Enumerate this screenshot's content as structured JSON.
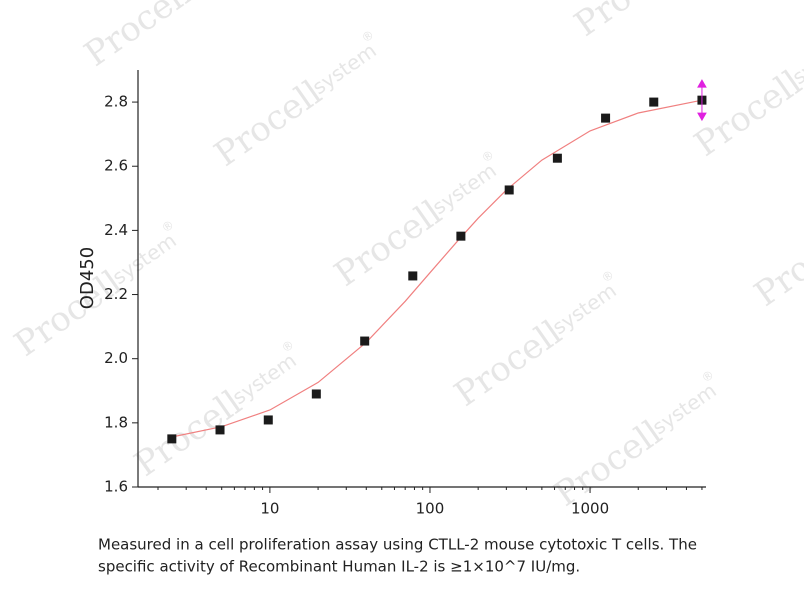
{
  "chart_data": {
    "type": "scatter",
    "y_label": "OD450",
    "x": [
      2.44,
      4.88,
      9.77,
      19.5,
      39.1,
      78.1,
      156,
      312.5,
      625,
      1250,
      2500,
      5000
    ],
    "values": [
      1.75,
      1.778,
      1.809,
      1.89,
      2.055,
      2.258,
      2.382,
      2.526,
      2.625,
      2.75,
      2.8,
      2.806
    ],
    "color": "#1a1a1a",
    "fit": {
      "color": "#f08080",
      "x": [
        2.5,
        5,
        10,
        20,
        40,
        70,
        100,
        150,
        200,
        300,
        500,
        1000,
        2000,
        5000
      ],
      "values": [
        1.757,
        1.788,
        1.84,
        1.926,
        2.051,
        2.179,
        2.268,
        2.369,
        2.438,
        2.526,
        2.619,
        2.71,
        2.766,
        2.806
      ]
    },
    "xscale": "log",
    "xlim": [
      1.5,
      5300
    ],
    "ylim": [
      1.6,
      2.9
    ],
    "xticks": [
      10,
      100,
      1000
    ],
    "yticks": [
      1.6,
      1.8,
      {
        "value": 2,
        "label": "2.0"
      },
      2.2,
      2.4,
      2.6,
      2.8
    ]
  },
  "caption": [
    "Measured in a cell proliferation assay using CTLL-2 mouse cytotoxic T cells. The",
    "specific activity of Recombinant Human IL-2 is ≥1×10^7 IU/mg."
  ],
  "watermark": {
    "brand": "Procell",
    "sub": "system",
    "mark": "®"
  }
}
